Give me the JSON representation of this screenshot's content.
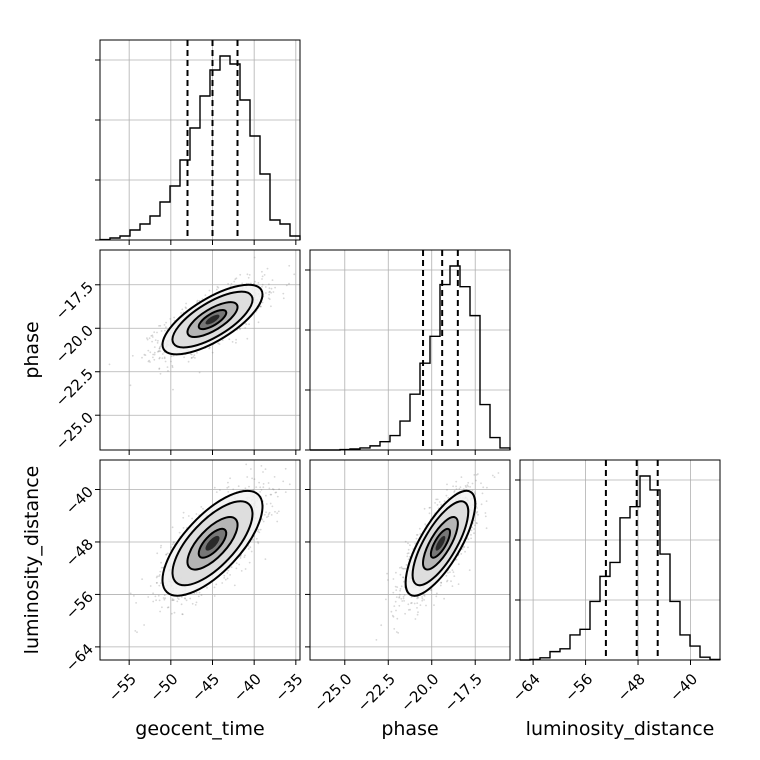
{
  "chart_data": {
    "type": "corner",
    "parameters": [
      "geocent_time",
      "phase",
      "luminosity_distance"
    ],
    "axes_labels": {
      "x": [
        "geocent_time",
        "phase",
        "luminosity_distance"
      ],
      "y": [
        "",
        "phase",
        "luminosity_distance"
      ]
    },
    "ranges": {
      "geocent_time": [
        -58.5,
        -34.5
      ],
      "phase": [
        -27.0,
        -15.5
      ],
      "luminosity_distance": [
        -66.0,
        -35.5
      ]
    },
    "ticks": {
      "geocent_time": [
        -55,
        -50,
        -45,
        -40,
        -35
      ],
      "phase": [
        -25.0,
        -22.5,
        -20.0,
        -17.5
      ],
      "luminosity_distance": [
        -64,
        -56,
        -48,
        -40
      ]
    },
    "tick_labels": {
      "geocent_time": [
        "−55",
        "−50",
        "−45",
        "−40",
        "−35"
      ],
      "phase": [
        "−25.0",
        "−22.5",
        "−20.0",
        "−17.5"
      ],
      "luminosity_distance": [
        "−64",
        "−56",
        "−48",
        "−40"
      ]
    },
    "grid": true,
    "quantiles": {
      "geocent_time": [
        -48.0,
        -45.0,
        -42.0
      ],
      "phase": [
        -20.5,
        -19.4,
        -18.5
      ],
      "luminosity_distance": [
        -52.9,
        -48.2,
        -45.0
      ]
    },
    "histograms": {
      "geocent_time": {
        "edges": [
          -58.5,
          -57.3,
          -56.1,
          -54.9,
          -53.7,
          -52.5,
          -51.3,
          -50.1,
          -48.9,
          -47.7,
          -46.5,
          -45.3,
          -44.1,
          -42.9,
          -41.7,
          -40.5,
          -39.3,
          -38.1,
          -36.9,
          -35.7,
          -34.5
        ],
        "counts": [
          0.002,
          0.01,
          0.02,
          0.05,
          0.08,
          0.12,
          0.19,
          0.27,
          0.4,
          0.56,
          0.72,
          0.85,
          0.92,
          0.88,
          0.7,
          0.52,
          0.33,
          0.1,
          0.08,
          0.02
        ]
      },
      "phase": {
        "edges": [
          -27.0,
          -26.425,
          -25.85,
          -25.275,
          -24.7,
          -24.125,
          -23.55,
          -22.975,
          -22.4,
          -21.825,
          -21.25,
          -20.675,
          -20.1,
          -19.525,
          -18.95,
          -18.375,
          -17.8,
          -17.225,
          -16.65,
          -16.075,
          -15.5
        ],
        "counts": [
          0.0,
          0.0,
          0.0,
          0.002,
          0.005,
          0.01,
          0.02,
          0.04,
          0.07,
          0.14,
          0.27,
          0.42,
          0.55,
          0.8,
          0.89,
          0.79,
          0.65,
          0.22,
          0.06,
          0.01
        ]
      },
      "luminosity_distance": {
        "edges": [
          -66.0,
          -64.475,
          -62.95,
          -61.425,
          -59.9,
          -58.375,
          -56.85,
          -55.325,
          -53.8,
          -52.275,
          -50.75,
          -49.225,
          -47.7,
          -46.175,
          -44.65,
          -43.125,
          -41.6,
          -40.075,
          -38.55,
          -37.025,
          -35.5
        ],
        "counts": [
          0.0,
          0.002,
          0.008,
          0.03,
          0.04,
          0.09,
          0.11,
          0.21,
          0.3,
          0.35,
          0.51,
          0.55,
          0.66,
          0.61,
          0.38,
          0.21,
          0.09,
          0.05,
          0.01,
          0.002
        ]
      }
    },
    "correlations": {
      "phase_vs_geocent_time": {
        "mean": [
          -45.0,
          -19.5
        ],
        "sd": [
          3.0,
          1.0
        ],
        "rho": 0.72
      },
      "luminosity_distance_vs_geocent_time": {
        "mean": [
          -45.0,
          -48.2
        ],
        "sd": [
          3.0,
          4.0
        ],
        "rho": 0.7
      },
      "luminosity_distance_vs_phase": {
        "mean": [
          -19.5,
          -48.2
        ],
        "sd": [
          1.0,
          4.0
        ],
        "rho": 0.75
      }
    }
  }
}
